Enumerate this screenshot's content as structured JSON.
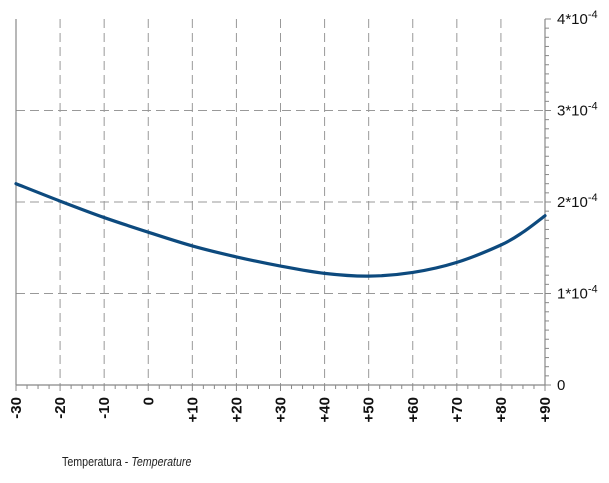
{
  "chart_data": {
    "type": "line",
    "title": "",
    "xlabel_primary": "Temperatura - ",
    "xlabel_secondary": "Temperature",
    "ylabel": "",
    "x_ticks": [
      "-30",
      "-20",
      "-10",
      "0",
      "+10",
      "+20",
      "+30",
      "+40",
      "+50",
      "+60",
      "+70",
      "+80",
      "+90"
    ],
    "y_ticks": [
      {
        "value": 0,
        "label": "0"
      },
      {
        "value": 0.0001,
        "label": "1*10",
        "exp": "-4"
      },
      {
        "value": 0.0002,
        "label": "2*10",
        "exp": "-4"
      },
      {
        "value": 0.0003,
        "label": "3*10",
        "exp": "-4"
      },
      {
        "value": 0.0004,
        "label": "4*10",
        "exp": "-4"
      }
    ],
    "xlim": [
      -30,
      90
    ],
    "ylim": [
      0,
      0.0004
    ],
    "grid": true,
    "y_axis_side": "right",
    "series": [
      {
        "color": "#0d4a7e",
        "x": [
          -30,
          -20,
          -10,
          0,
          10,
          20,
          30,
          40,
          50,
          60,
          70,
          80,
          85,
          90
        ],
        "y": [
          0.00022,
          0.000201,
          0.000183,
          0.000167,
          0.000152,
          0.00014,
          0.00013,
          0.000122,
          0.000119,
          0.000123,
          0.000134,
          0.000153,
          0.000167,
          0.000185
        ]
      }
    ],
    "colors": {
      "axis": "#888888",
      "grid": "#999999",
      "line": "#0d4a7e"
    }
  }
}
